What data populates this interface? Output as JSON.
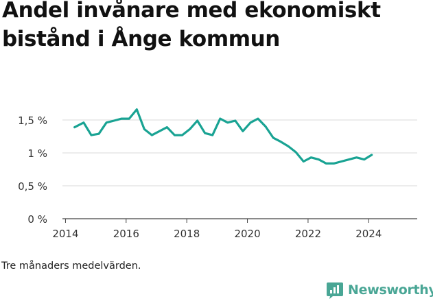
{
  "title": "Andel invånare med ekonomiskt bistånd i Ånge kommun",
  "caption": "Tre månaders medelvärden.",
  "brand": {
    "name": "Newsworthy",
    "color": "#49a695",
    "icon": "bar-chart-speech-bubble-logo"
  },
  "colors": {
    "line": "#19a393",
    "grid": "#d9d9d9",
    "axis": "#444444"
  },
  "chart_data": {
    "type": "line",
    "title": "Andel invånare med ekonomiskt bistånd i Ånge kommun",
    "xlabel": "",
    "ylabel": "",
    "xlim": [
      2013.9,
      2025.6
    ],
    "ylim": [
      0,
      1.5
    ],
    "xticks": [
      2014,
      2016,
      2018,
      2020,
      2022,
      2024
    ],
    "xtick_labels": [
      "2014",
      "2016",
      "2018",
      "2020",
      "2022",
      "2024"
    ],
    "yticks": [
      0,
      0.5,
      1,
      1.5
    ],
    "ytick_labels": [
      "0 %",
      "0,5 %",
      "1 %",
      "1,5 %"
    ],
    "grid": true,
    "legend": "none",
    "series": [
      {
        "x": [
          2014.3,
          2014.6,
          2014.85,
          2015.1,
          2015.35,
          2015.6,
          2015.85,
          2016.1,
          2016.35,
          2016.6,
          2016.85,
          2017.1,
          2017.35,
          2017.6,
          2017.85,
          2018.1,
          2018.35,
          2018.6,
          2018.85,
          2019.1,
          2019.35,
          2019.6,
          2019.85,
          2020.1,
          2020.35,
          2020.6,
          2020.85,
          2021.1,
          2021.35,
          2021.6,
          2021.85,
          2022.1,
          2022.35,
          2022.6,
          2022.85,
          2023.1,
          2023.35,
          2023.6,
          2023.85,
          2024.1
        ],
        "values": [
          1.39,
          1.46,
          1.27,
          1.29,
          1.46,
          1.49,
          1.52,
          1.52,
          1.66,
          1.36,
          1.27,
          1.33,
          1.39,
          1.27,
          1.27,
          1.36,
          1.49,
          1.3,
          1.27,
          1.52,
          1.46,
          1.49,
          1.33,
          1.46,
          1.52,
          1.4,
          1.23,
          1.17,
          1.1,
          1.01,
          0.87,
          0.93,
          0.9,
          0.84,
          0.84,
          0.87,
          0.9,
          0.93,
          0.9,
          0.97
        ]
      }
    ]
  }
}
